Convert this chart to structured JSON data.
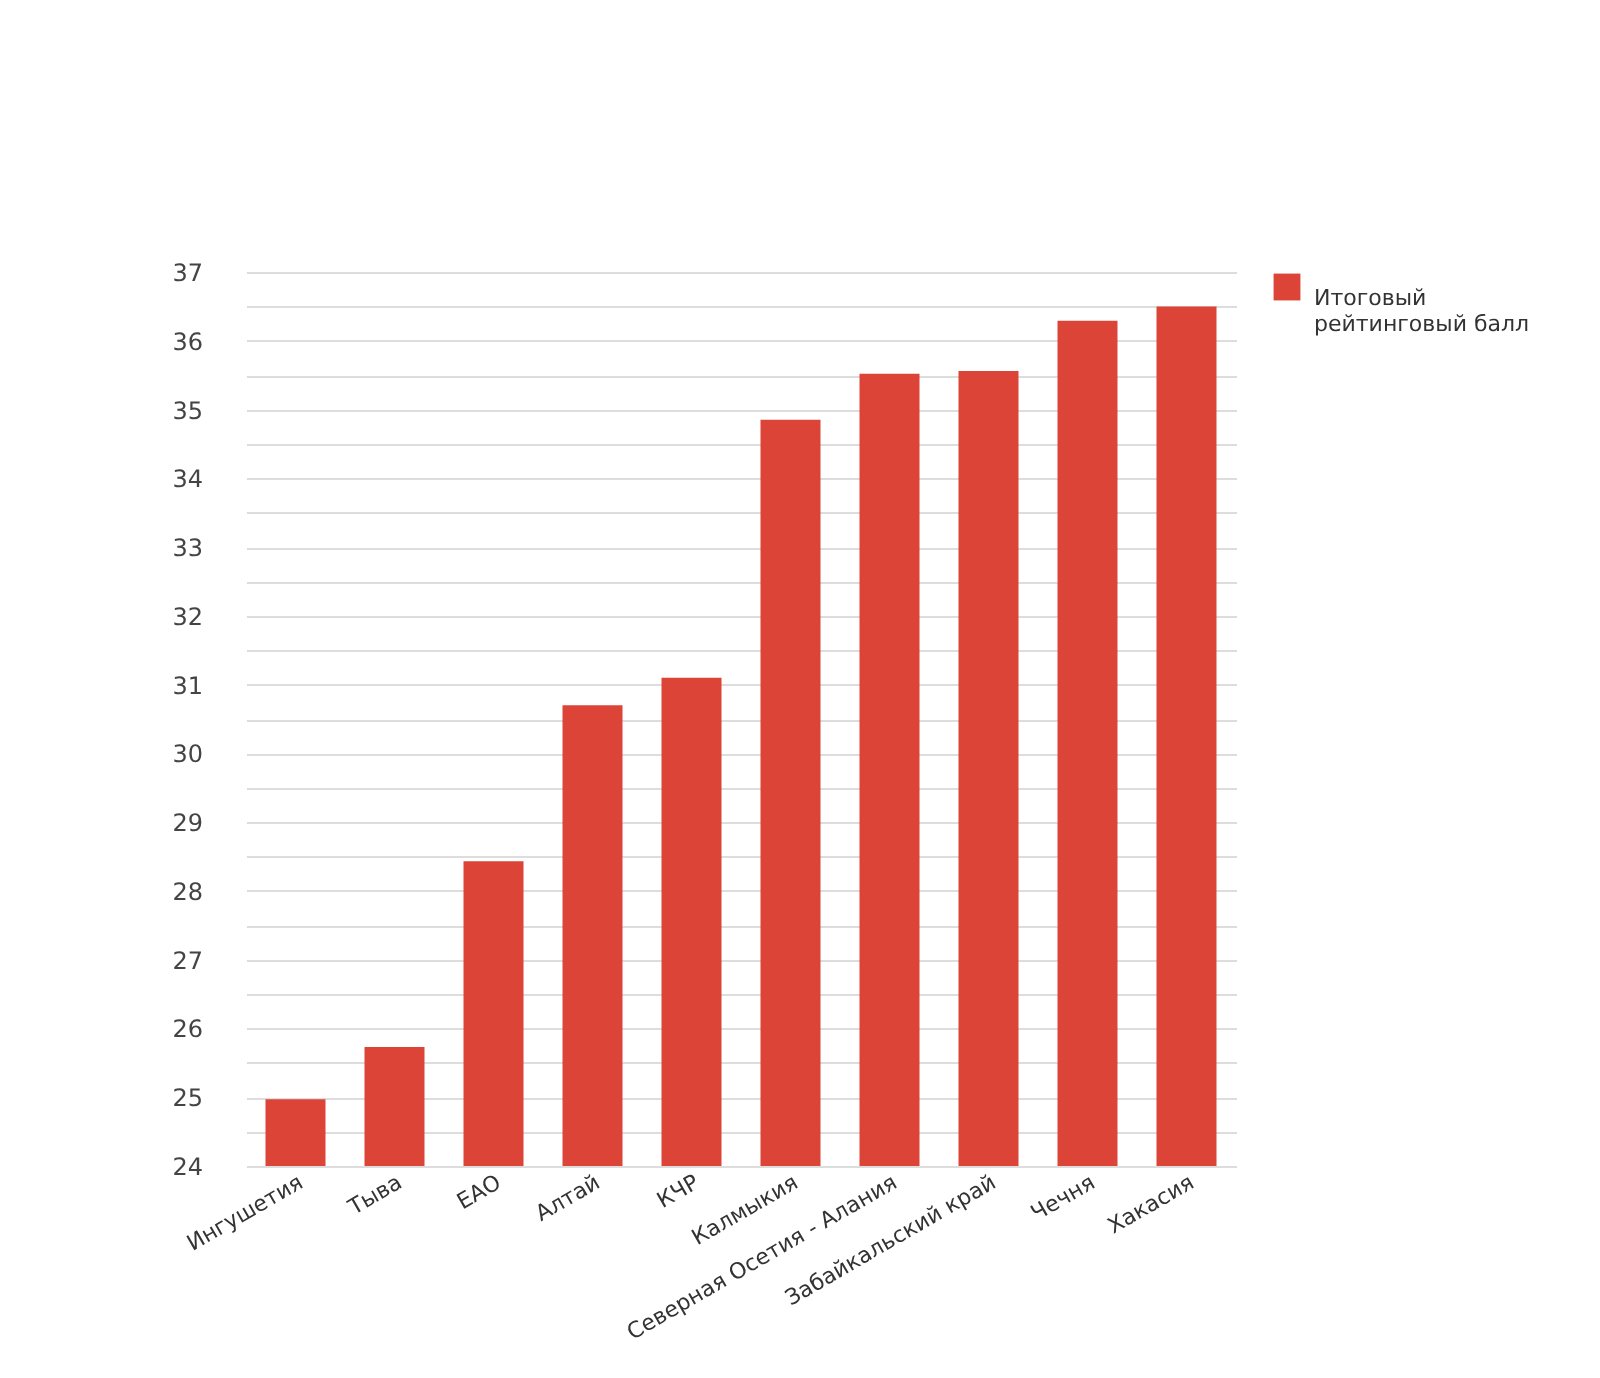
{
  "chart_data": {
    "type": "bar",
    "categories": [
      "Ингушетия",
      "Тыва",
      "ЕАО",
      "Алтай",
      "КЧР",
      "Калмыкия",
      "Северная Осетия - Алания",
      "Забайкальский край",
      "Чечня",
      "Хакасия"
    ],
    "series": [
      {
        "name": "Итоговый рейтинговый балл",
        "color": "#dc4437",
        "values": [
          24.97,
          25.73,
          28.43,
          30.7,
          31.1,
          34.85,
          35.52,
          35.56,
          36.29,
          36.5
        ]
      }
    ],
    "ylim": [
      24,
      37
    ],
    "yticks": [
      24,
      {
        "value": 24.5,
        "label": null
      },
      25,
      {
        "value": 25.5,
        "label": null
      },
      26,
      {
        "value": 26.5,
        "label": null
      },
      27,
      {
        "value": 27.5,
        "label": null
      },
      28,
      {
        "value": 28.5,
        "label": null
      },
      29,
      {
        "value": 29.5,
        "label": null
      },
      30,
      {
        "value": 30.5,
        "label": null
      },
      31,
      {
        "value": 31.5,
        "label": null
      },
      32,
      {
        "value": 32.5,
        "label": null
      },
      33,
      {
        "value": 33.5,
        "label": null
      },
      34,
      {
        "value": 34.5,
        "label": null
      },
      35,
      {
        "value": 35.5,
        "label": null
      },
      36,
      {
        "value": 36.5,
        "label": null
      },
      37
    ],
    "grid": "y",
    "legend": "top right"
  }
}
